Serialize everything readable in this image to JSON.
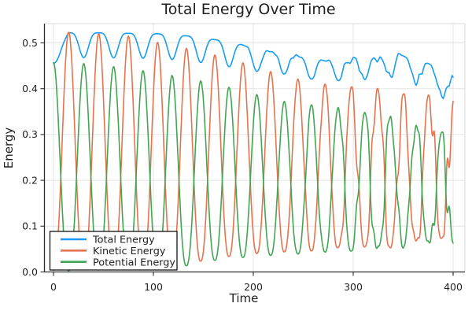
{
  "chart_data": {
    "type": "line",
    "title": "Total Energy Over Time",
    "xlabel": "Time",
    "ylabel": "Energy",
    "xlim": [
      -9,
      412
    ],
    "ylim": [
      0,
      0.542
    ],
    "grid": true,
    "x_ticks": [
      {
        "value": 0,
        "label": "0"
      },
      {
        "value": 100,
        "label": "100"
      },
      {
        "value": 200,
        "label": "200"
      },
      {
        "value": 300,
        "label": "300"
      },
      {
        "value": 400,
        "label": "400"
      }
    ],
    "y_ticks": [
      {
        "value": 0.0,
        "label": "0.0"
      },
      {
        "value": 0.1,
        "label": "0.1"
      },
      {
        "value": 0.2,
        "label": "0.2"
      },
      {
        "value": 0.3,
        "label": "0.3"
      },
      {
        "value": 0.4,
        "label": "0.4"
      },
      {
        "value": 0.5,
        "label": "0.5"
      }
    ],
    "legend": {
      "position": "bottom-left",
      "background": "#FFFFFF",
      "border_color": "#000000"
    },
    "oscillation": {
      "period_start": 30.5,
      "period_end": 25,
      "chaos_start": 230,
      "chaos_amp": [
        0.3,
        0.18
      ]
    },
    "series": [
      {
        "name": "Total Energy",
        "color": "#189DF2",
        "start_value": 0.458,
        "dip_exponent": 2.2,
        "envelope_t": [
          0,
          15,
          45,
          75,
          105,
          135,
          165,
          195,
          225,
          255,
          285,
          315,
          345,
          375,
          400
        ],
        "envelope_hi": [
          0.46,
          0.522,
          0.522,
          0.521,
          0.52,
          0.515,
          0.506,
          0.492,
          0.478,
          0.468,
          0.458,
          0.464,
          0.472,
          0.45,
          0.415
        ],
        "envelope_lo": [
          0.455,
          0.468,
          0.468,
          0.467,
          0.466,
          0.461,
          0.452,
          0.442,
          0.432,
          0.422,
          0.414,
          0.418,
          0.428,
          0.402,
          0.376
        ],
        "noise": {
          "start": 160,
          "amp": 0.014
        }
      },
      {
        "name": "Kinetic Energy",
        "color": "#E4744E",
        "shape_exponent": 1.25,
        "max_t": [
          0,
          45,
          75,
          105,
          136,
          167,
          198,
          228,
          259,
          288,
          319,
          349,
          400
        ],
        "max_v": [
          0.525,
          0.52,
          0.515,
          0.501,
          0.487,
          0.471,
          0.451,
          0.43,
          0.412,
          0.406,
          0.401,
          0.388,
          0.386
        ],
        "min_t": [
          0,
          120,
          160,
          200,
          250,
          300,
          350,
          400
        ],
        "min_v": [
          0.004,
          0.01,
          0.03,
          0.04,
          0.046,
          0.052,
          0.06,
          0.07
        ],
        "noise_amp": 0.012
      },
      {
        "name": "Potential Energy",
        "color": "#43A553",
        "shape_exponent": 1.25,
        "max_t": [
          0,
          30,
          61,
          91,
          121,
          152,
          182,
          212,
          243,
          273,
          303,
          334,
          364,
          400
        ],
        "max_v": [
          0.457,
          0.455,
          0.448,
          0.439,
          0.428,
          0.415,
          0.4,
          0.382,
          0.366,
          0.362,
          0.35,
          0.34,
          0.318,
          0.3
        ],
        "min_t": [
          0,
          120,
          160,
          200,
          250,
          300,
          350,
          400
        ],
        "min_v": [
          0.002,
          0.008,
          0.025,
          0.034,
          0.04,
          0.046,
          0.055,
          0.065
        ],
        "noise_amp": 0.012
      }
    ],
    "style": {
      "grid_color": "#E4E4E4",
      "frame_light_color": "#D9D9D9",
      "axis_color": "#2C2C2C",
      "line_width": 1.6
    }
  }
}
